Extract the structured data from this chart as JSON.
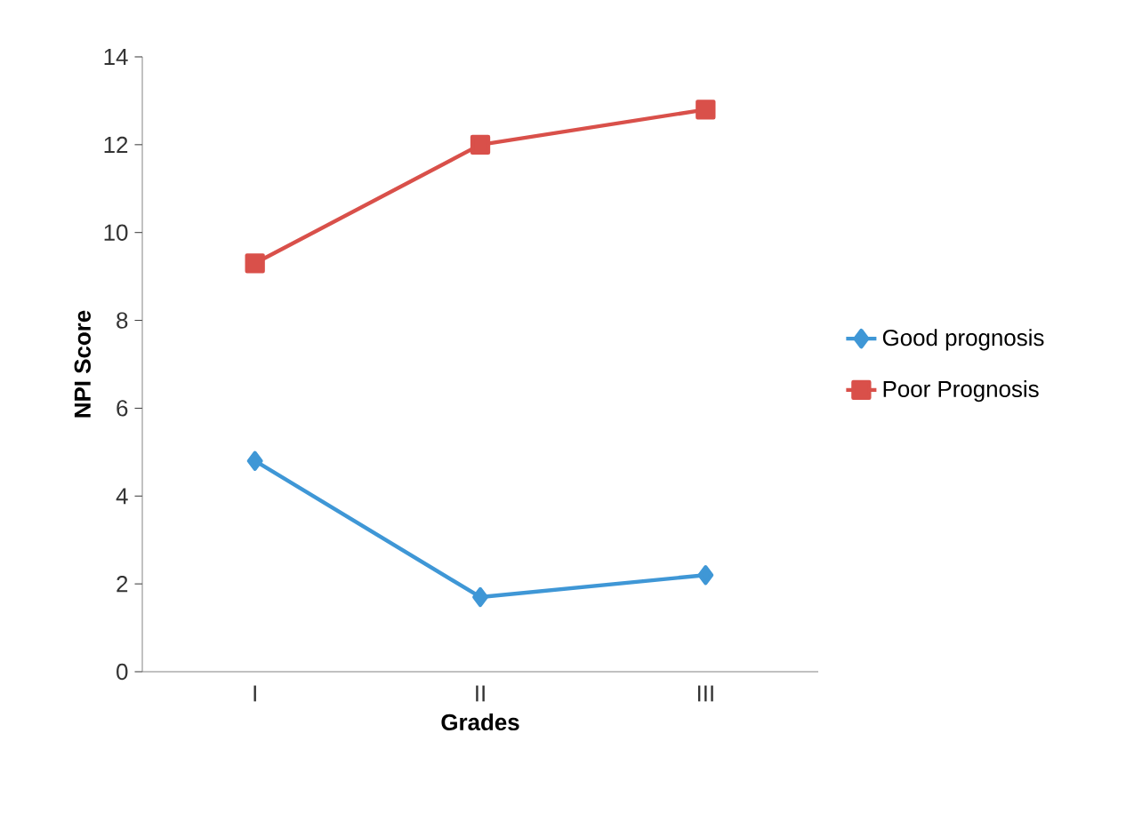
{
  "chart_data": {
    "type": "line",
    "xlabel": "Grades",
    "ylabel": "NPI Score",
    "categories": [
      "I",
      "II",
      "III"
    ],
    "series": [
      {
        "name": "Good prognosis",
        "color": "#3f97d6",
        "marker": "diamond",
        "values": [
          4.8,
          1.7,
          2.2
        ]
      },
      {
        "name": "Poor Prognosis",
        "color": "#d9504a",
        "marker": "square",
        "values": [
          9.3,
          12.0,
          12.8
        ]
      }
    ],
    "ylim": [
      0,
      14
    ],
    "yticks": [
      0,
      2,
      4,
      6,
      8,
      10,
      12,
      14
    ],
    "grid": false,
    "legend": "right",
    "line_style": "solid"
  }
}
